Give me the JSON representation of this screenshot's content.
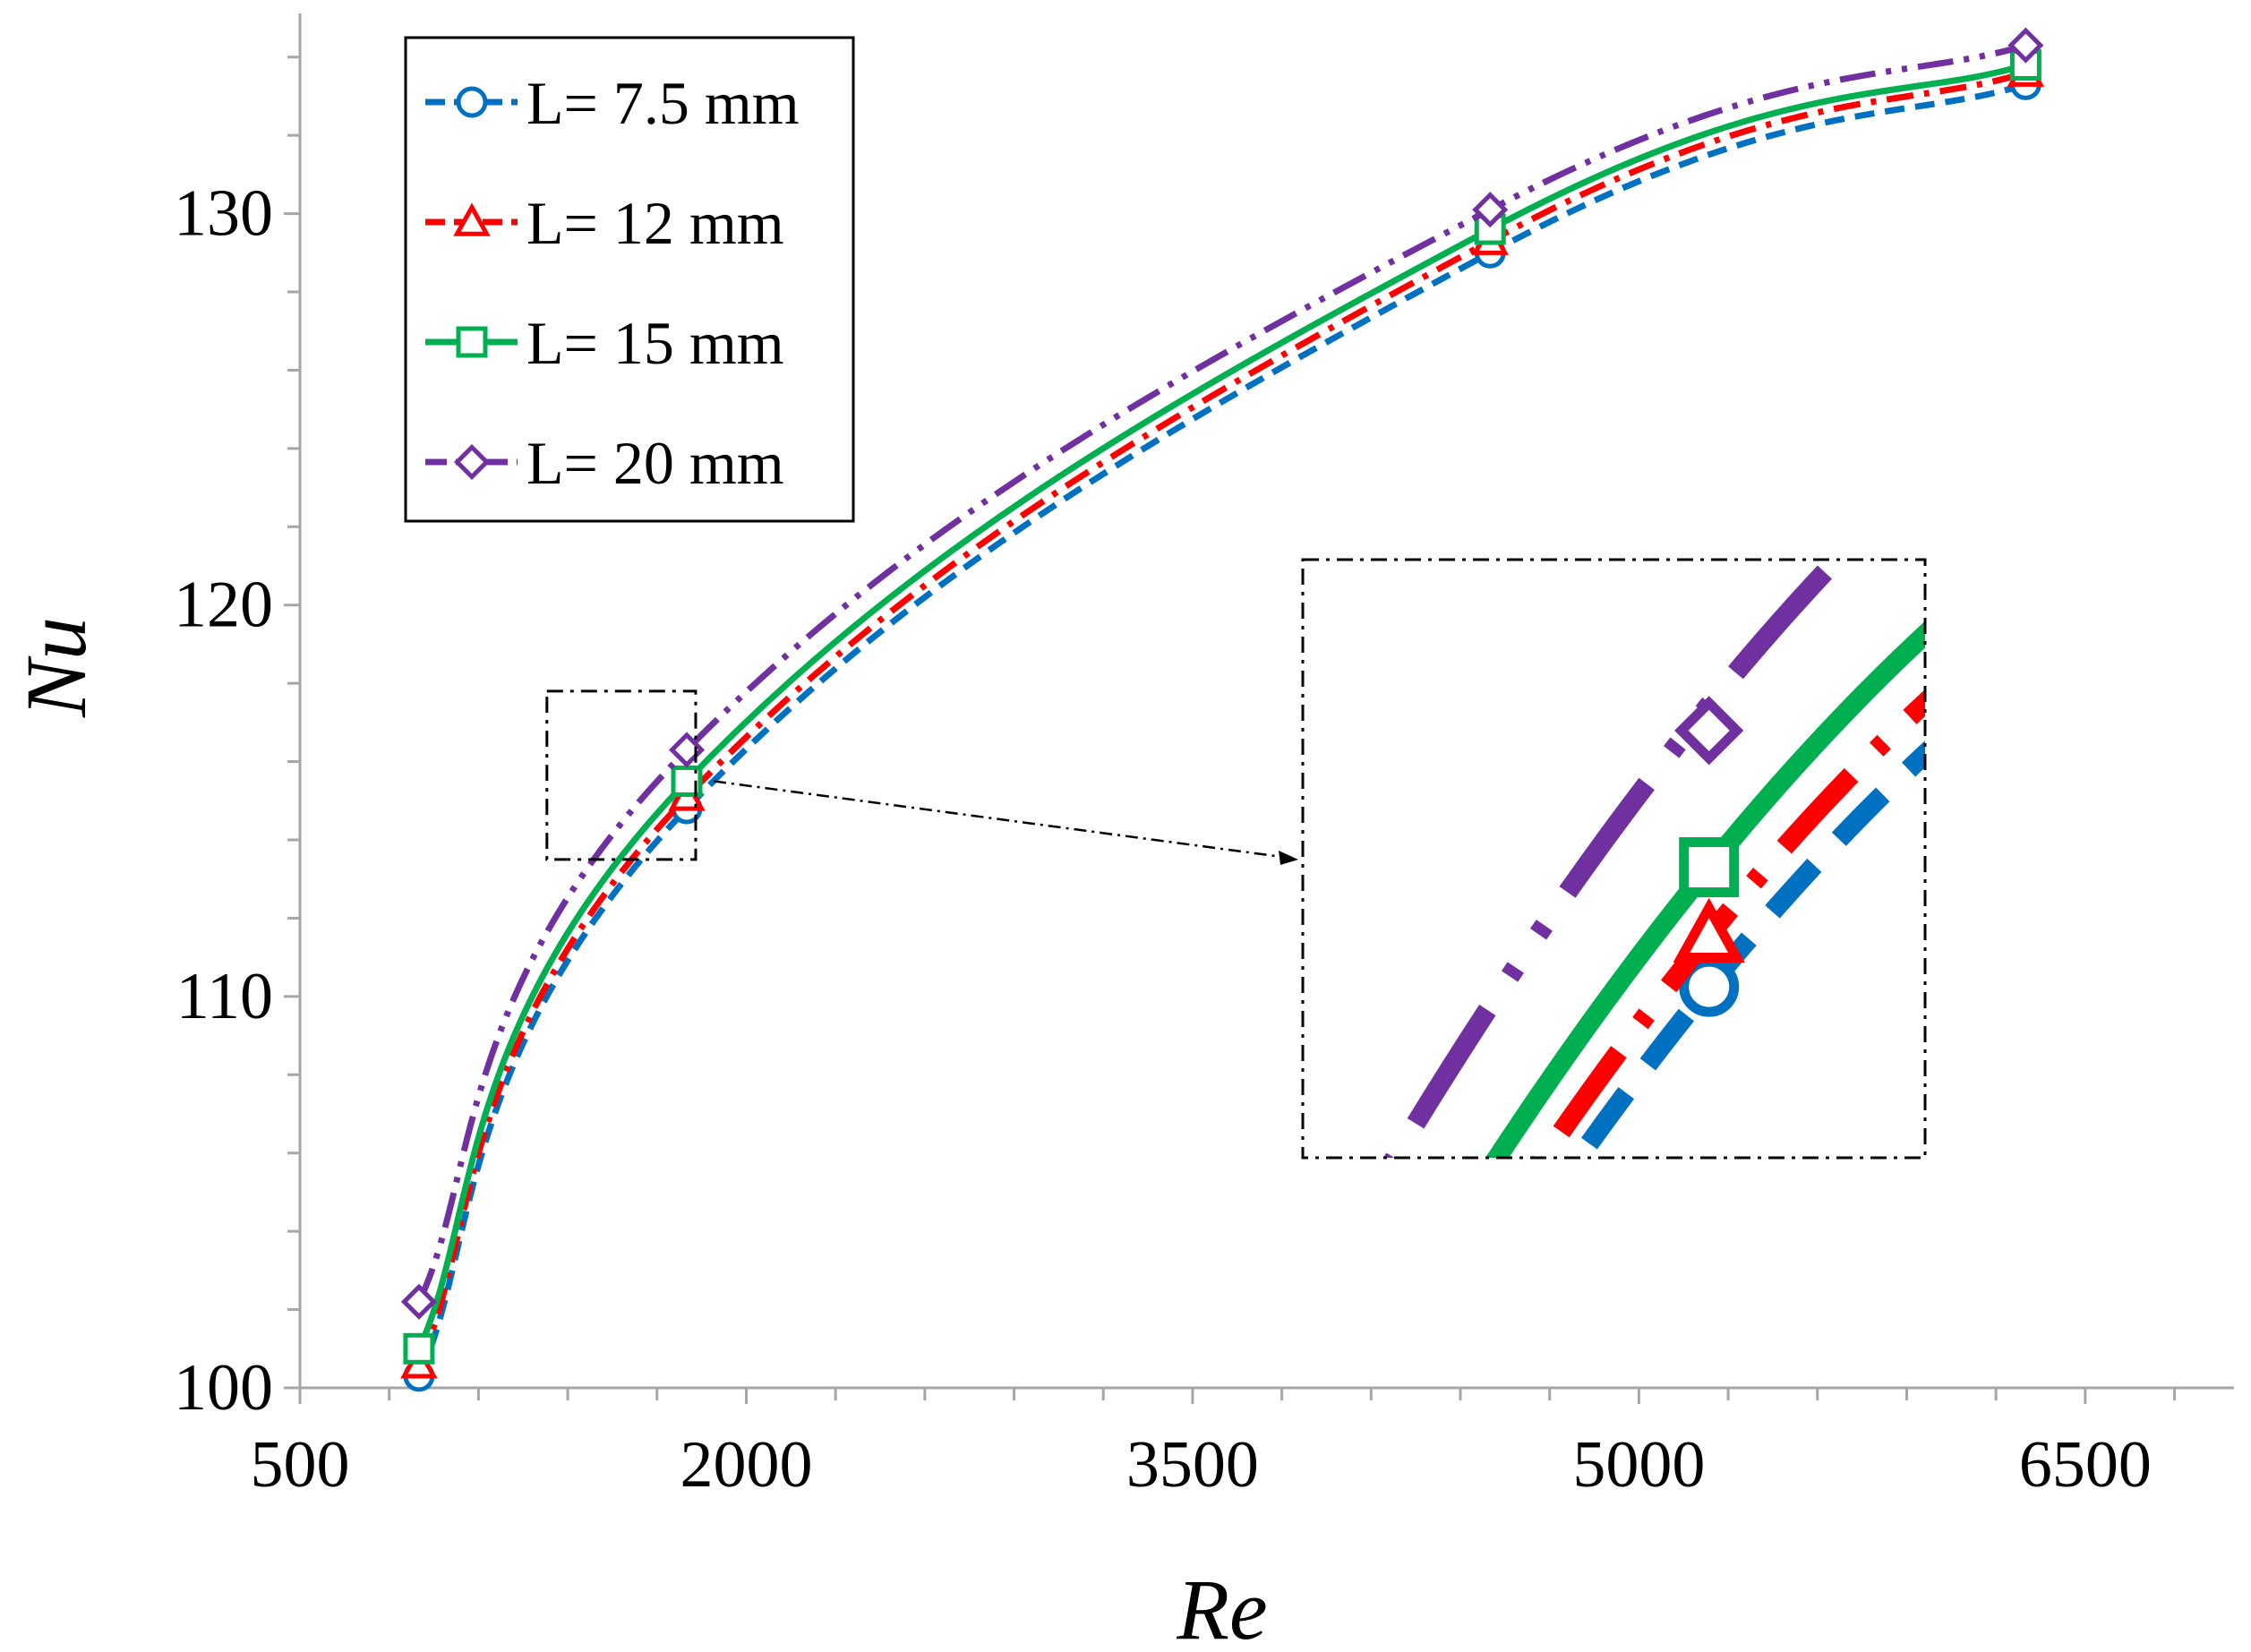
{
  "chart_data": {
    "type": "line",
    "title": "",
    "xlabel": "Re",
    "ylabel": "Nu",
    "xlim": [
      500,
      7000
    ],
    "ylim": [
      100,
      135
    ],
    "xticks": [
      500,
      2000,
      3500,
      5000,
      6500
    ],
    "xtick_labels": [
      "500",
      "2000",
      "3500",
      "5000",
      "6500"
    ],
    "yticks": [
      100,
      110,
      120,
      130
    ],
    "ytick_labels": [
      "100",
      "110",
      "120",
      "130"
    ],
    "x": [
      900,
      1800,
      4500,
      6300
    ],
    "series": [
      {
        "name": "L= 7.5 mm",
        "label": "L= 7.5 mm",
        "values": [
          100.3,
          114.8,
          129.0,
          133.3
        ],
        "color": "#0070c0",
        "marker": "circle",
        "dash": "dash"
      },
      {
        "name": "L= 12 mm",
        "label": "L= 12 mm",
        "values": [
          100.6,
          115.1,
          129.3,
          133.6
        ],
        "color": "#ff0000",
        "marker": "triangle",
        "dash": "dashdot"
      },
      {
        "name": "L= 15 mm",
        "label": "L= 15 mm",
        "values": [
          101.0,
          115.5,
          129.6,
          133.8
        ],
        "color": "#00b050",
        "marker": "square",
        "dash": "solid"
      },
      {
        "name": "L= 20 mm",
        "label": "L= 20 mm",
        "values": [
          102.2,
          116.3,
          130.1,
          134.3
        ],
        "color": "#7030a0",
        "marker": "diamond",
        "dash": "dashdotdot"
      }
    ],
    "legend": "top-left",
    "inset": {
      "description": "zoomed view of region around Re = 1800",
      "x_range": [
        1330,
        1830
      ],
      "y_range": [
        113.5,
        117.8
      ]
    },
    "grid": false
  }
}
